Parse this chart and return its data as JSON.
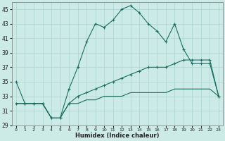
{
  "x": [
    0,
    1,
    2,
    3,
    4,
    5,
    6,
    7,
    8,
    9,
    10,
    11,
    12,
    13,
    14,
    15,
    16,
    17,
    18,
    19,
    20,
    21,
    22,
    23
  ],
  "line1": [
    35,
    32,
    32,
    32,
    30,
    30,
    34,
    37,
    40.5,
    43,
    42.5,
    43.5,
    45,
    45.5,
    44.5,
    43,
    42,
    40.5,
    43,
    39.5,
    37.5,
    37.5,
    37.5,
    33
  ],
  "line2": [
    32,
    32,
    32,
    32,
    30,
    30,
    32,
    33,
    33.5,
    34,
    34.5,
    35,
    35.5,
    36,
    36.5,
    37,
    37,
    37,
    37.5,
    38,
    38,
    38,
    38,
    33
  ],
  "line3": [
    32,
    32,
    32,
    32,
    30,
    30,
    32,
    32,
    32.5,
    32.5,
    33,
    33,
    33,
    33.5,
    33.5,
    33.5,
    33.5,
    33.5,
    34,
    34,
    34,
    34,
    34,
    33
  ],
  "color": "#1a6e60",
  "bg_color": "#cceae6",
  "grid_color": "#b0d8d4",
  "xlabel": "Humidex (Indice chaleur)",
  "ylim": [
    29,
    46
  ],
  "xlim": [
    -0.5,
    23.5
  ],
  "yticks": [
    29,
    31,
    33,
    35,
    37,
    39,
    41,
    43,
    45
  ],
  "xticks": [
    0,
    1,
    2,
    3,
    4,
    5,
    6,
    7,
    8,
    9,
    10,
    11,
    12,
    13,
    14,
    15,
    16,
    17,
    18,
    19,
    20,
    21,
    22,
    23
  ]
}
